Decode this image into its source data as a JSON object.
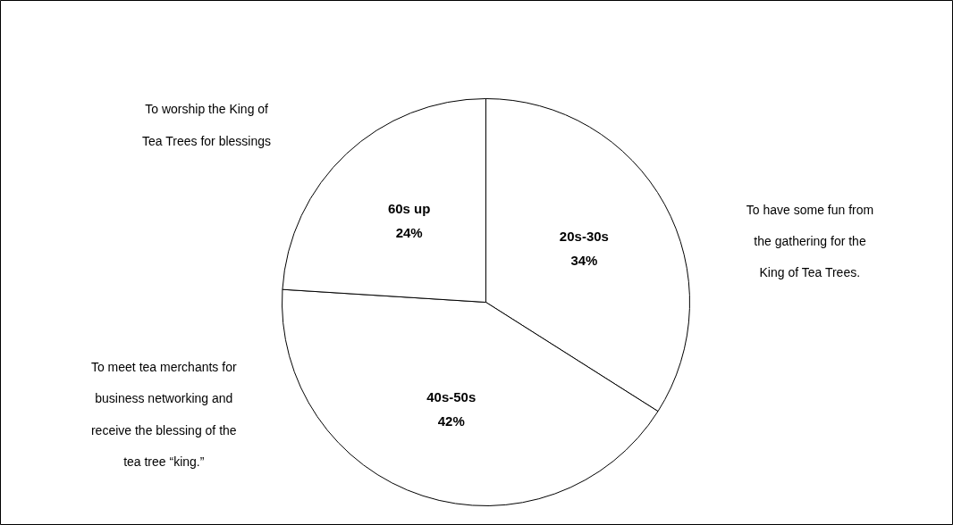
{
  "chart_data": {
    "type": "pie",
    "categories": [
      "20s-30s",
      "40s-50s",
      "60s up"
    ],
    "values": [
      34,
      42,
      24
    ],
    "value_labels": [
      "34%",
      "42%",
      "24%"
    ],
    "colors": [
      "#ffffff",
      "#ffffff",
      "#ffffff"
    ],
    "annotations": [
      "To have some fun from the gathering for the King of Tea Trees.",
      "To meet tea merchants for business networking and receive the blessing of the tea tree “king.”",
      "To worship the King of Tea Trees for blessings"
    ]
  }
}
